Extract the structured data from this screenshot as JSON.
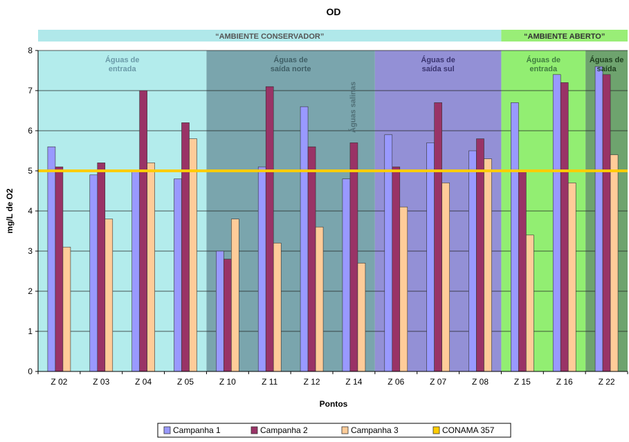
{
  "chart_data": {
    "type": "bar",
    "title": "OD",
    "xlabel": "Pontos",
    "ylabel": "mg/L de O2",
    "ylim": [
      0,
      8
    ],
    "yticks": [
      0,
      1,
      2,
      3,
      4,
      5,
      6,
      7,
      8
    ],
    "grid": true,
    "legend_position": "bottom",
    "categories": [
      "Z 02",
      "Z 03",
      "Z 04",
      "Z 05",
      "Z 10",
      "Z 11",
      "Z 12",
      "Z 14",
      "Z 06",
      "Z 07",
      "Z 08",
      "Z 15",
      "Z 16",
      "Z 22"
    ],
    "series": [
      {
        "name": "Campanha 1",
        "color": "#9999ff",
        "values": [
          5.6,
          4.9,
          5.0,
          4.8,
          3.0,
          5.1,
          6.6,
          4.8,
          5.9,
          5.7,
          5.5,
          6.7,
          7.4,
          7.6
        ]
      },
      {
        "name": "Campanha 2",
        "color": "#993366",
        "values": [
          5.1,
          5.2,
          7.0,
          6.2,
          2.8,
          7.1,
          5.6,
          5.7,
          5.1,
          6.7,
          5.8,
          5.0,
          7.2,
          7.4
        ]
      },
      {
        "name": "Campanha 3",
        "color": "#ffcc99",
        "values": [
          3.1,
          3.8,
          5.2,
          5.8,
          3.8,
          3.2,
          3.6,
          2.7,
          4.1,
          4.7,
          5.3,
          3.4,
          4.7,
          5.4
        ]
      }
    ],
    "reference_line": {
      "name": "CONAMA 357",
      "value": 5.0,
      "color": "#ffcc00"
    },
    "environments": [
      {
        "label": "“AMBIENTE CONSERVADOR”",
        "from": 0,
        "to": 10,
        "band_color": "#b0e8ea",
        "text_color": "#555555"
      },
      {
        "label": "“AMBIENTE ABERTO”",
        "from": 11,
        "to": 13,
        "band_color": "#99ee77",
        "text_color": "#333333"
      }
    ],
    "regions": [
      {
        "lines": [
          "Águas de",
          "entrada"
        ],
        "from": 0,
        "to": 3,
        "color": "#b3ecec",
        "text_color": "#6a9aa8"
      },
      {
        "lines": [
          "Águas de",
          "saída norte"
        ],
        "from": 4,
        "to": 7,
        "color": "#7aa5ad",
        "text_color": "#3f5f66"
      },
      {
        "lines": [
          "Águas de",
          "saída sul"
        ],
        "from": 8,
        "to": 10,
        "color": "#9390d6",
        "text_color": "#3a3470"
      },
      {
        "lines": [
          "Águas de",
          "entrada"
        ],
        "from": 11,
        "to": 12,
        "color": "#92ee72",
        "text_color": "#3f7d3f"
      },
      {
        "lines": [
          "Águas de",
          "saída"
        ],
        "from": 13,
        "to": 13,
        "color": "#6ea36e",
        "text_color": "#1f3f1f"
      }
    ],
    "annotation": {
      "text": "Águas salinas",
      "category_index": 7,
      "color": "#4f6f76"
    }
  }
}
